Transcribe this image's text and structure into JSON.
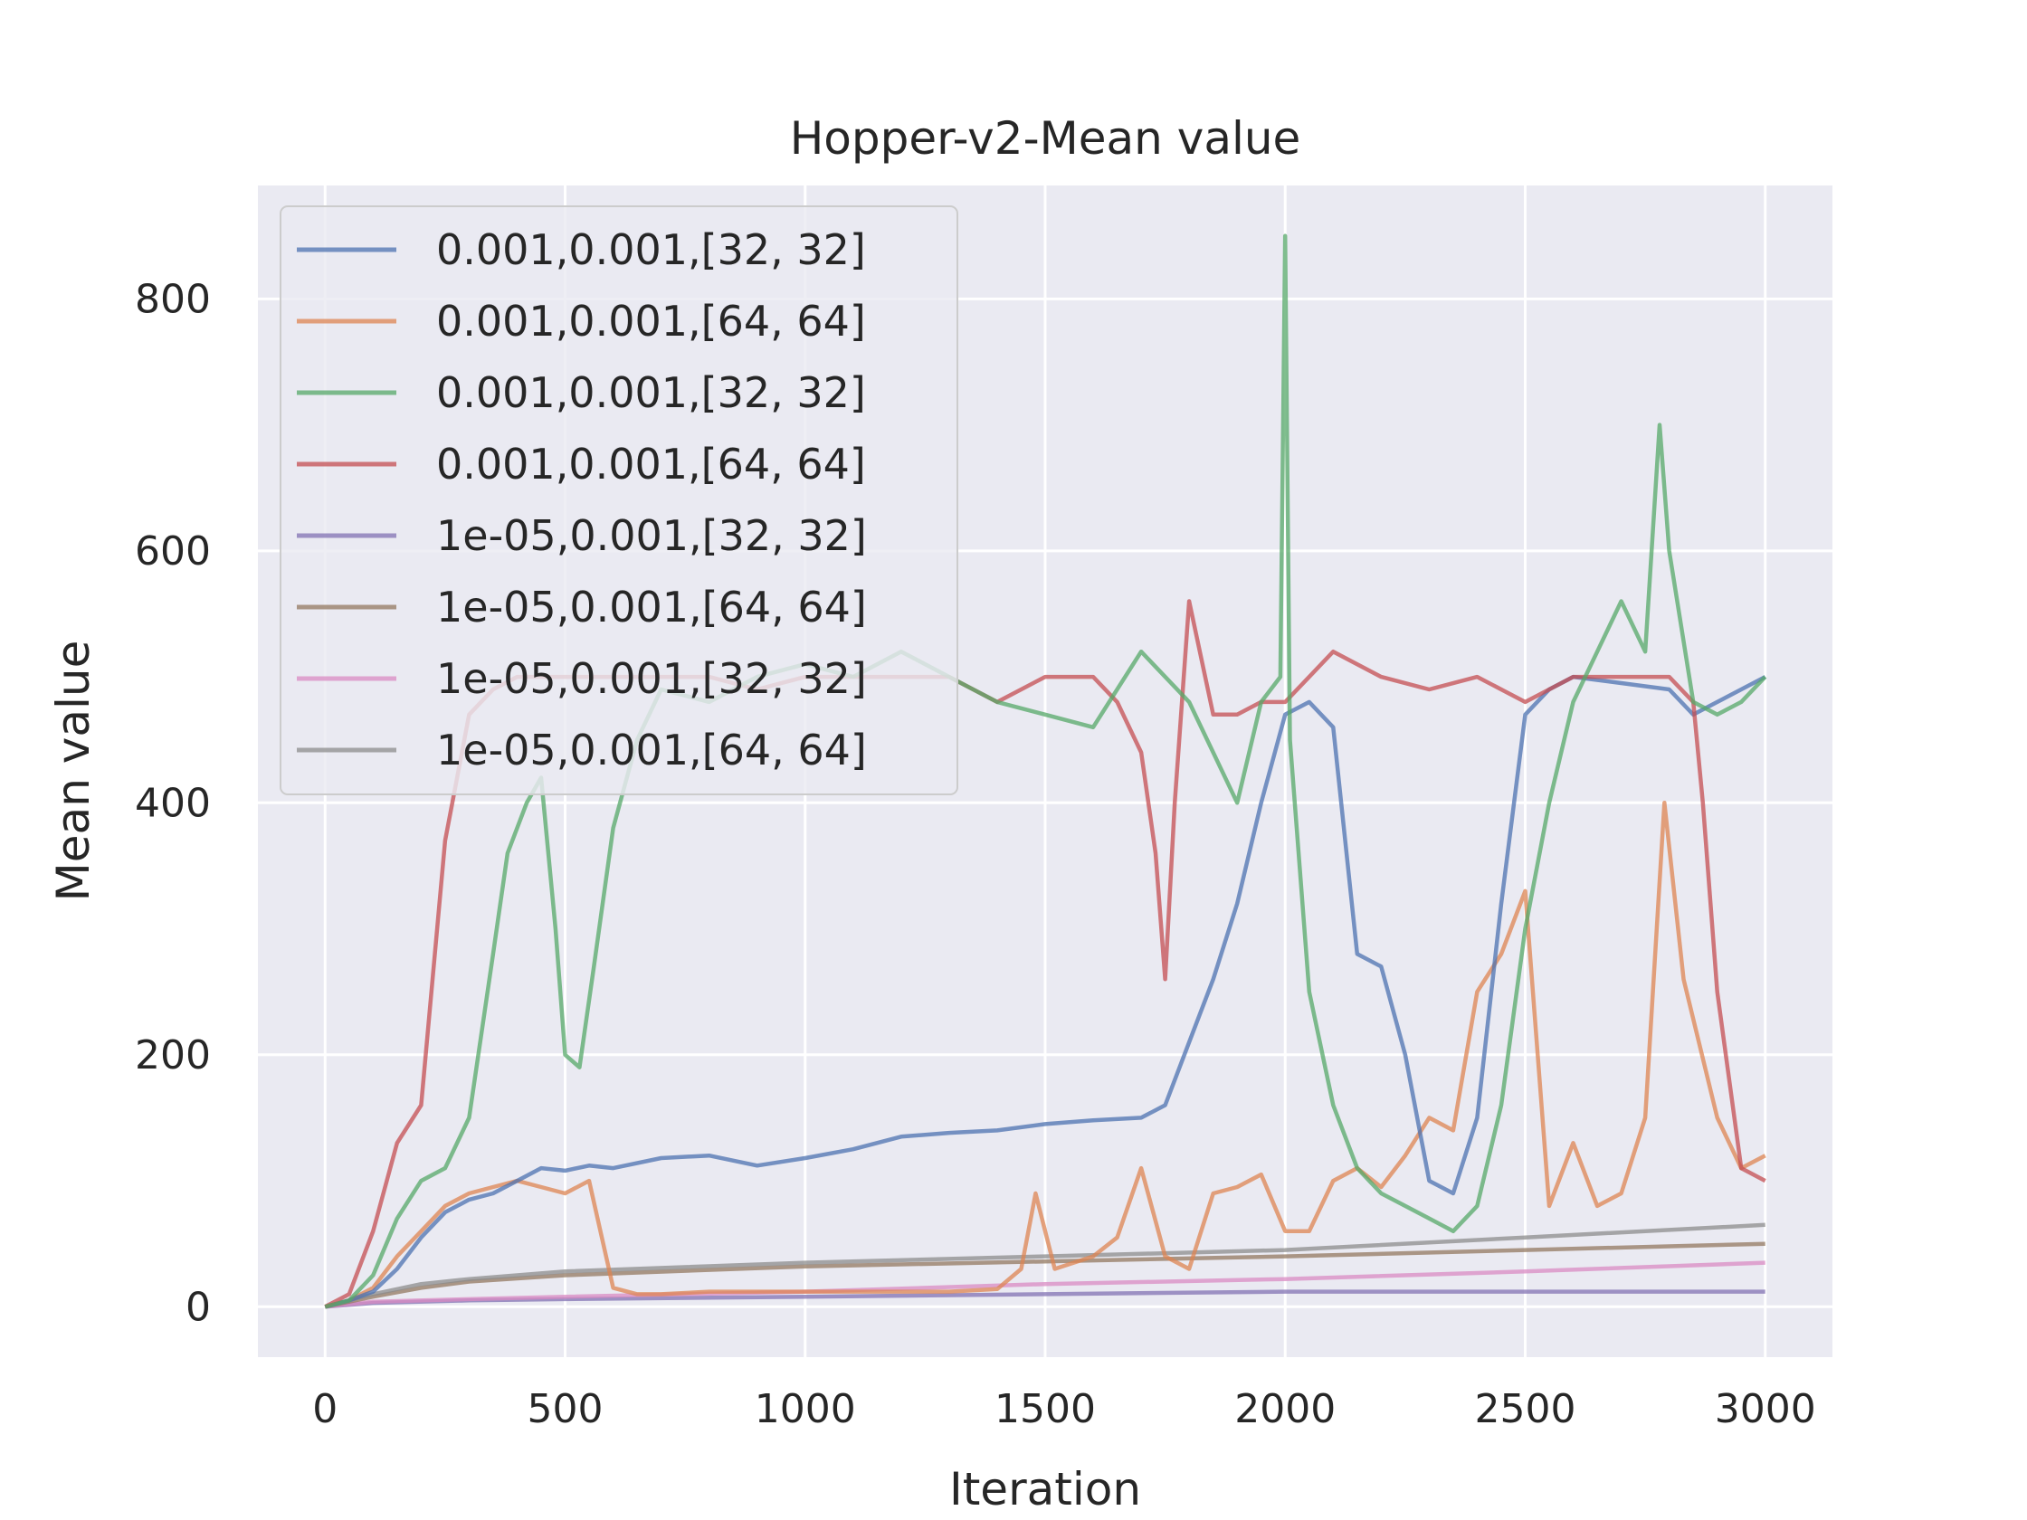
{
  "chart_data": {
    "type": "line",
    "title": "Hopper-v2-Mean value",
    "xlabel": "Iteration",
    "ylabel": "Mean value",
    "xlim": [
      -140,
      3140
    ],
    "ylim": [
      -40,
      890
    ],
    "xticks": [
      0,
      500,
      1000,
      1500,
      2000,
      2500,
      3000
    ],
    "yticks": [
      0,
      200,
      400,
      600,
      800
    ],
    "grid": true,
    "legend_position": "top-left",
    "series": [
      {
        "name": "0.001,0.001,[32, 32]",
        "color": "#4c72b0",
        "x": [
          0,
          50,
          100,
          150,
          200,
          250,
          300,
          350,
          400,
          450,
          500,
          550,
          600,
          700,
          800,
          900,
          1000,
          1100,
          1200,
          1300,
          1400,
          1500,
          1600,
          1700,
          1750,
          1800,
          1850,
          1900,
          1950,
          2000,
          2050,
          2100,
          2150,
          2200,
          2250,
          2300,
          2350,
          2400,
          2450,
          2500,
          2550,
          2600,
          2700,
          2800,
          2850,
          2900,
          3000
        ],
        "y": [
          0,
          5,
          12,
          30,
          55,
          75,
          85,
          90,
          100,
          110,
          108,
          112,
          110,
          118,
          120,
          112,
          118,
          125,
          135,
          138,
          140,
          145,
          148,
          150,
          160,
          210,
          260,
          320,
          400,
          470,
          480,
          460,
          280,
          270,
          200,
          100,
          90,
          150,
          320,
          470,
          490,
          500,
          495,
          490,
          470,
          480,
          500
        ]
      },
      {
        "name": "0.001,0.001,[64, 64]",
        "color": "#dd8452",
        "x": [
          0,
          50,
          100,
          150,
          200,
          250,
          300,
          350,
          400,
          450,
          500,
          550,
          600,
          650,
          700,
          800,
          900,
          1000,
          1100,
          1200,
          1300,
          1400,
          1450,
          1480,
          1520,
          1600,
          1650,
          1700,
          1750,
          1800,
          1850,
          1900,
          1950,
          2000,
          2050,
          2100,
          2150,
          2200,
          2250,
          2300,
          2350,
          2400,
          2450,
          2500,
          2550,
          2600,
          2650,
          2700,
          2750,
          2790,
          2830,
          2900,
          2950,
          3000
        ],
        "y": [
          0,
          5,
          15,
          40,
          60,
          80,
          90,
          95,
          100,
          95,
          90,
          100,
          15,
          10,
          10,
          12,
          12,
          12,
          12,
          12,
          12,
          14,
          30,
          90,
          30,
          40,
          55,
          110,
          40,
          30,
          90,
          95,
          105,
          60,
          60,
          100,
          110,
          95,
          120,
          150,
          140,
          250,
          280,
          330,
          80,
          130,
          80,
          90,
          150,
          400,
          260,
          150,
          110,
          120
        ]
      },
      {
        "name": "0.001,0.001,[32, 32]",
        "color": "#55a868",
        "x": [
          0,
          50,
          100,
          150,
          200,
          250,
          300,
          350,
          380,
          420,
          450,
          480,
          500,
          530,
          560,
          600,
          650,
          700,
          800,
          900,
          1000,
          1100,
          1200,
          1300,
          1400,
          1500,
          1600,
          1700,
          1800,
          1900,
          1950,
          1990,
          2000,
          2010,
          2050,
          2100,
          2150,
          2200,
          2250,
          2300,
          2350,
          2400,
          2450,
          2500,
          2550,
          2600,
          2650,
          2700,
          2750,
          2780,
          2800,
          2850,
          2900,
          2950,
          3000
        ],
        "y": [
          0,
          5,
          25,
          70,
          100,
          110,
          150,
          280,
          360,
          400,
          420,
          300,
          200,
          190,
          270,
          380,
          450,
          490,
          480,
          500,
          510,
          500,
          520,
          500,
          480,
          470,
          460,
          520,
          480,
          400,
          480,
          500,
          850,
          450,
          250,
          160,
          110,
          90,
          80,
          70,
          60,
          80,
          160,
          300,
          400,
          480,
          520,
          560,
          520,
          700,
          600,
          480,
          470,
          480,
          500
        ]
      },
      {
        "name": "0.001,0.001,[64, 64]",
        "color": "#c44e52",
        "x": [
          0,
          50,
          100,
          150,
          200,
          250,
          300,
          350,
          400,
          500,
          600,
          700,
          800,
          900,
          1000,
          1100,
          1200,
          1300,
          1400,
          1500,
          1600,
          1650,
          1700,
          1730,
          1750,
          1770,
          1800,
          1850,
          1900,
          1950,
          2000,
          2050,
          2100,
          2200,
          2300,
          2400,
          2500,
          2600,
          2700,
          2800,
          2850,
          2870,
          2900,
          2950,
          3000
        ],
        "y": [
          0,
          10,
          60,
          130,
          160,
          370,
          470,
          490,
          500,
          500,
          500,
          500,
          500,
          490,
          500,
          500,
          500,
          500,
          480,
          500,
          500,
          480,
          440,
          360,
          260,
          400,
          560,
          470,
          470,
          480,
          480,
          500,
          520,
          500,
          490,
          500,
          480,
          500,
          500,
          500,
          480,
          400,
          250,
          110,
          100
        ]
      },
      {
        "name": "1e-05,0.001,[32, 32]",
        "color": "#8172b3",
        "x": [
          0,
          100,
          300,
          500,
          1000,
          1500,
          2000,
          2500,
          3000
        ],
        "y": [
          0,
          3,
          5,
          6,
          8,
          10,
          12,
          12,
          12
        ]
      },
      {
        "name": "1e-05,0.001,[64, 64]",
        "color": "#937860",
        "x": [
          0,
          100,
          200,
          300,
          500,
          1000,
          1500,
          2000,
          2500,
          3000
        ],
        "y": [
          0,
          8,
          15,
          20,
          25,
          32,
          36,
          40,
          45,
          50
        ]
      },
      {
        "name": "1e-05,0.001,[32, 32]",
        "color": "#da8bc3",
        "x": [
          0,
          100,
          300,
          500,
          1000,
          1500,
          2000,
          2500,
          3000
        ],
        "y": [
          0,
          4,
          6,
          8,
          12,
          18,
          22,
          28,
          35
        ]
      },
      {
        "name": "1e-05,0.001,[64, 64]",
        "color": "#8c8c8c",
        "x": [
          0,
          100,
          200,
          300,
          500,
          1000,
          1500,
          2000,
          2500,
          3000
        ],
        "y": [
          0,
          10,
          18,
          22,
          28,
          35,
          40,
          45,
          55,
          65
        ]
      }
    ]
  }
}
